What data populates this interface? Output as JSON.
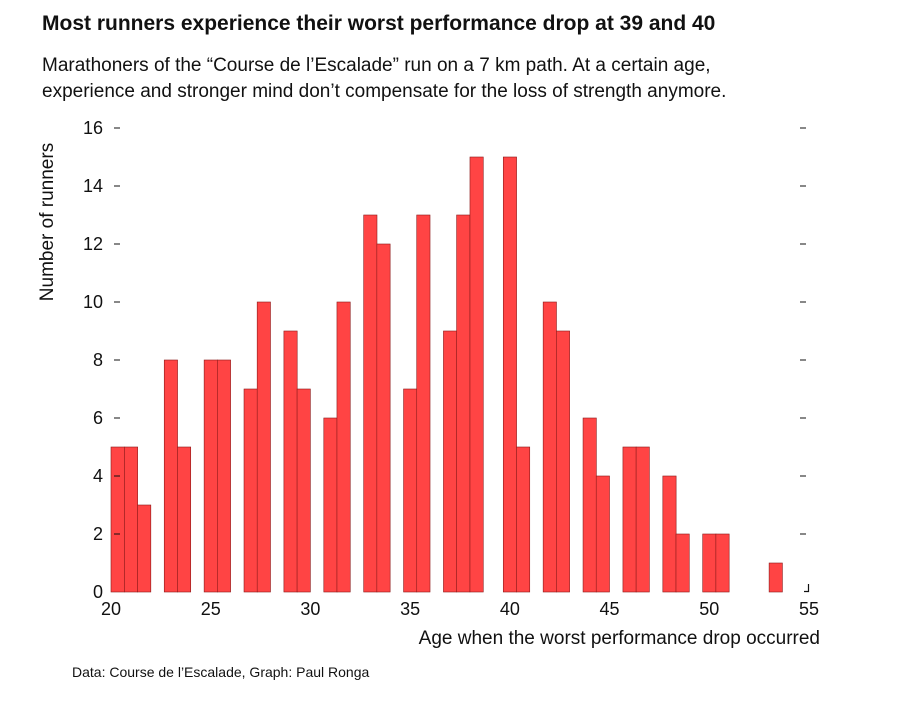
{
  "header": {
    "title": "Most runners experience their worst performance drop at 39 and 40",
    "subtitle_line1": "Marathoners of the “Course de l’Escalade” run on a 7 km path. At a certain age,",
    "subtitle_line2": "experience and stronger mind don’t compensate for the loss of strength anymore."
  },
  "footer": {
    "source": "Data: Course de l’Escalade, Graph: Paul Ronga"
  },
  "chart_data": {
    "type": "bar",
    "title": "Most runners experience their worst performance drop at 39 and 40",
    "xlabel": "Age when the worst performance drop occurred",
    "ylabel": "Number of runners",
    "xlim": [
      20,
      55
    ],
    "ylim": [
      0,
      16
    ],
    "x_ticks": [
      20,
      25,
      30,
      35,
      40,
      45,
      50,
      55
    ],
    "y_ticks": [
      0,
      2,
      4,
      6,
      8,
      10,
      12,
      14,
      16
    ],
    "bin_width": 0.6667,
    "bar_color": "#ff4444",
    "bar_edge_color": "#8b1a1a",
    "grid": false,
    "bars": [
      {
        "x": 20.0,
        "value": 5
      },
      {
        "x": 20.67,
        "value": 5
      },
      {
        "x": 21.33,
        "value": 3
      },
      {
        "x": 22.67,
        "value": 8
      },
      {
        "x": 23.33,
        "value": 5
      },
      {
        "x": 24.67,
        "value": 8
      },
      {
        "x": 25.33,
        "value": 8
      },
      {
        "x": 26.67,
        "value": 7
      },
      {
        "x": 27.33,
        "value": 10
      },
      {
        "x": 28.67,
        "value": 9
      },
      {
        "x": 29.33,
        "value": 7
      },
      {
        "x": 30.67,
        "value": 6
      },
      {
        "x": 31.33,
        "value": 10
      },
      {
        "x": 32.67,
        "value": 13
      },
      {
        "x": 33.33,
        "value": 12
      },
      {
        "x": 34.67,
        "value": 7
      },
      {
        "x": 35.33,
        "value": 13
      },
      {
        "x": 36.67,
        "value": 9
      },
      {
        "x": 37.33,
        "value": 13
      },
      {
        "x": 38.0,
        "value": 15
      },
      {
        "x": 39.67,
        "value": 15
      },
      {
        "x": 40.33,
        "value": 5
      },
      {
        "x": 41.67,
        "value": 10
      },
      {
        "x": 42.33,
        "value": 9
      },
      {
        "x": 43.67,
        "value": 6
      },
      {
        "x": 44.33,
        "value": 4
      },
      {
        "x": 45.67,
        "value": 5
      },
      {
        "x": 46.33,
        "value": 5
      },
      {
        "x": 47.67,
        "value": 4
      },
      {
        "x": 48.33,
        "value": 2
      },
      {
        "x": 49.67,
        "value": 2
      },
      {
        "x": 50.33,
        "value": 2
      },
      {
        "x": 53.0,
        "value": 1
      }
    ]
  }
}
